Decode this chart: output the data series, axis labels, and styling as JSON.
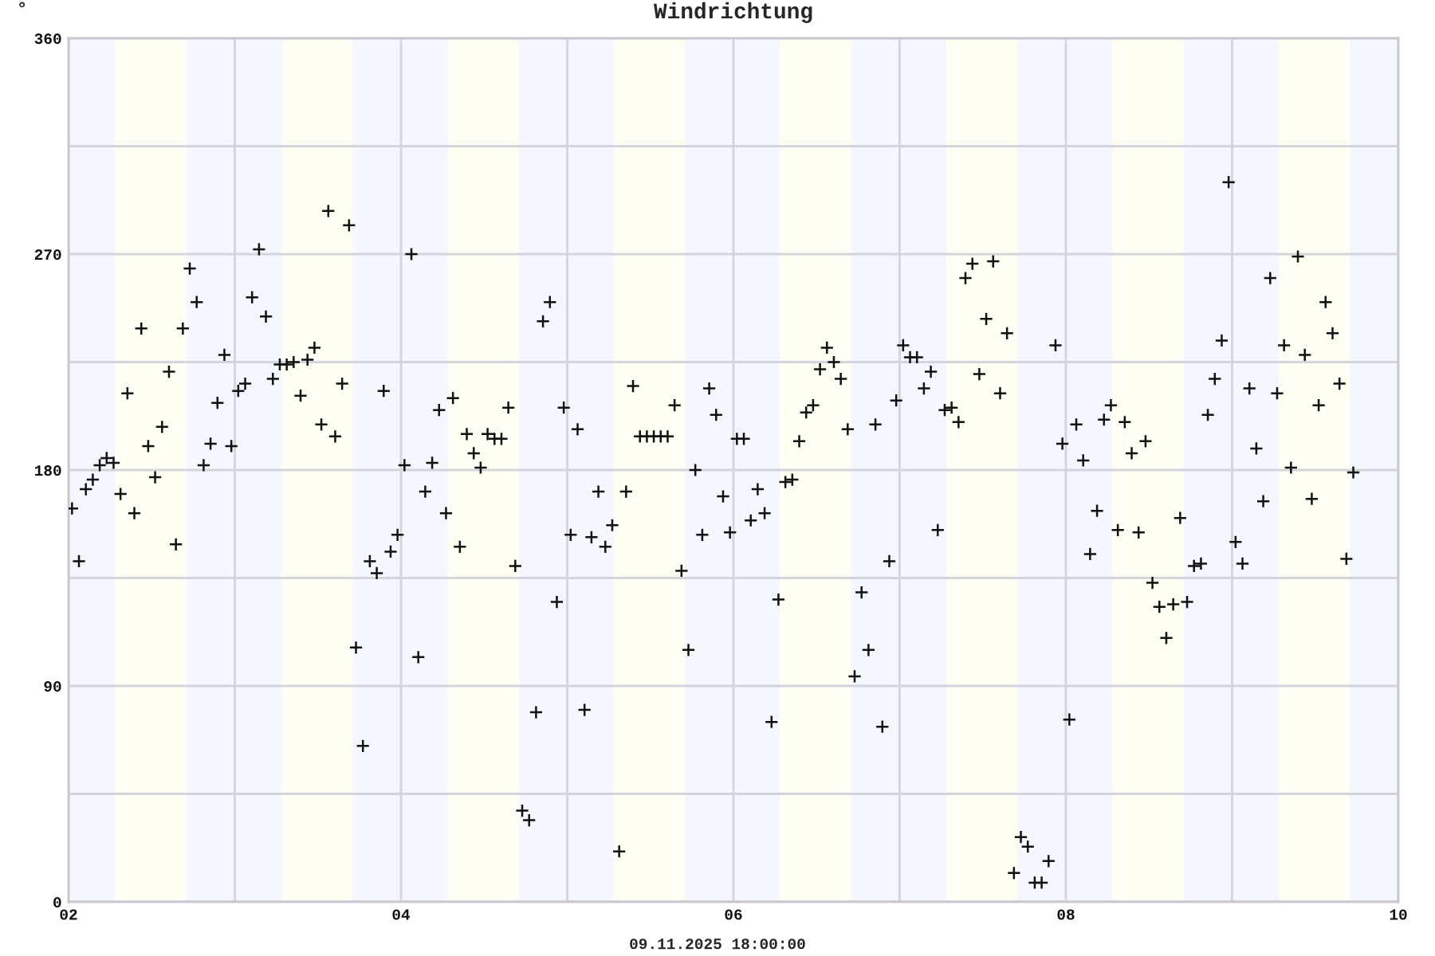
{
  "chart_data": {
    "type": "scatter",
    "title": "Windrichtung",
    "ylabel": "°",
    "annotations": [
      "09.11.2025 18:00:00"
    ],
    "x": [
      "2025-11-02T00:30",
      "2025-11-02T01:30",
      "2025-11-02T02:30",
      "2025-11-02T03:30",
      "2025-11-02T04:30",
      "2025-11-02T05:30",
      "2025-11-02T06:30",
      "2025-11-02T07:30",
      "2025-11-02T08:30",
      "2025-11-02T09:30",
      "2025-11-02T10:30",
      "2025-11-02T11:30",
      "2025-11-02T12:30",
      "2025-11-02T13:30",
      "2025-11-02T14:30",
      "2025-11-02T15:30",
      "2025-11-02T16:30",
      "2025-11-02T17:30",
      "2025-11-02T18:30",
      "2025-11-02T19:30",
      "2025-11-02T20:30",
      "2025-11-02T21:30",
      "2025-11-02T22:30",
      "2025-11-02T23:30",
      "2025-11-03T00:30",
      "2025-11-03T01:30",
      "2025-11-03T02:30",
      "2025-11-03T03:30",
      "2025-11-03T04:30",
      "2025-11-03T05:30",
      "2025-11-03T06:30",
      "2025-11-03T07:30",
      "2025-11-03T08:30",
      "2025-11-03T09:30",
      "2025-11-03T10:30",
      "2025-11-03T11:30",
      "2025-11-03T12:30",
      "2025-11-03T13:30",
      "2025-11-03T14:30",
      "2025-11-03T15:30",
      "2025-11-03T16:30",
      "2025-11-03T17:30",
      "2025-11-03T18:30",
      "2025-11-03T19:30",
      "2025-11-03T20:30",
      "2025-11-03T21:30",
      "2025-11-03T22:30",
      "2025-11-03T23:30",
      "2025-11-04T00:30",
      "2025-11-04T01:30",
      "2025-11-04T02:30",
      "2025-11-04T03:30",
      "2025-11-04T04:30",
      "2025-11-04T05:30",
      "2025-11-04T06:30",
      "2025-11-04T07:30",
      "2025-11-04T08:30",
      "2025-11-04T09:30",
      "2025-11-04T10:30",
      "2025-11-04T11:30",
      "2025-11-04T12:30",
      "2025-11-04T13:30",
      "2025-11-04T14:30",
      "2025-11-04T15:30",
      "2025-11-04T16:30",
      "2025-11-04T17:30",
      "2025-11-04T18:30",
      "2025-11-04T19:30",
      "2025-11-04T20:30",
      "2025-11-04T21:30",
      "2025-11-04T22:30",
      "2025-11-04T23:30",
      "2025-11-05T00:30",
      "2025-11-05T01:30",
      "2025-11-05T02:30",
      "2025-11-05T03:30",
      "2025-11-05T04:30",
      "2025-11-05T05:30",
      "2025-11-05T06:30",
      "2025-11-05T07:30",
      "2025-11-05T08:30",
      "2025-11-05T09:30",
      "2025-11-05T10:30",
      "2025-11-05T11:30",
      "2025-11-05T12:30",
      "2025-11-05T13:30",
      "2025-11-05T14:30",
      "2025-11-05T15:30",
      "2025-11-05T16:30",
      "2025-11-05T17:30",
      "2025-11-05T18:30",
      "2025-11-05T19:30",
      "2025-11-05T20:30",
      "2025-11-05T21:30",
      "2025-11-05T22:30",
      "2025-11-05T23:30",
      "2025-11-06T00:30",
      "2025-11-06T01:30",
      "2025-11-06T02:30",
      "2025-11-06T03:30",
      "2025-11-06T04:30",
      "2025-11-06T05:30",
      "2025-11-06T06:30",
      "2025-11-06T07:30",
      "2025-11-06T08:30",
      "2025-11-06T09:30",
      "2025-11-06T10:30",
      "2025-11-06T11:30",
      "2025-11-06T12:30",
      "2025-11-06T13:30",
      "2025-11-06T14:30",
      "2025-11-06T15:30",
      "2025-11-06T16:30",
      "2025-11-06T17:30",
      "2025-11-06T18:30",
      "2025-11-06T19:30",
      "2025-11-06T20:30",
      "2025-11-06T21:30",
      "2025-11-06T22:30",
      "2025-11-06T23:30",
      "2025-11-07T00:30",
      "2025-11-07T01:30",
      "2025-11-07T02:30",
      "2025-11-07T03:30",
      "2025-11-07T04:30",
      "2025-11-07T05:30",
      "2025-11-07T06:30",
      "2025-11-07T07:30",
      "2025-11-07T08:30",
      "2025-11-07T09:30",
      "2025-11-07T10:30",
      "2025-11-07T11:30",
      "2025-11-07T12:30",
      "2025-11-07T13:30",
      "2025-11-07T14:30",
      "2025-11-07T15:30",
      "2025-11-07T16:30",
      "2025-11-07T17:30",
      "2025-11-07T18:30",
      "2025-11-07T19:30",
      "2025-11-07T20:30",
      "2025-11-07T21:30",
      "2025-11-07T22:30",
      "2025-11-07T23:30",
      "2025-11-08T00:30",
      "2025-11-08T01:30",
      "2025-11-08T02:30",
      "2025-11-08T03:30",
      "2025-11-08T04:30",
      "2025-11-08T05:30",
      "2025-11-08T06:30",
      "2025-11-08T07:30",
      "2025-11-08T08:30",
      "2025-11-08T09:30",
      "2025-11-08T10:30",
      "2025-11-08T11:30",
      "2025-11-08T12:30",
      "2025-11-08T13:30",
      "2025-11-08T14:30",
      "2025-11-08T15:30",
      "2025-11-08T16:30",
      "2025-11-08T17:30",
      "2025-11-08T18:30",
      "2025-11-08T19:30",
      "2025-11-08T20:30",
      "2025-11-08T21:30",
      "2025-11-08T22:30",
      "2025-11-08T23:30",
      "2025-11-09T00:30",
      "2025-11-09T01:30",
      "2025-11-09T02:30",
      "2025-11-09T03:30",
      "2025-11-09T04:30",
      "2025-11-09T05:30",
      "2025-11-09T06:30",
      "2025-11-09T07:30",
      "2025-11-09T08:30",
      "2025-11-09T09:30",
      "2025-11-09T10:30",
      "2025-11-09T11:30",
      "2025-11-09T12:30",
      "2025-11-09T13:30",
      "2025-11-09T14:30",
      "2025-11-09T15:30",
      "2025-11-09T16:30",
      "2025-11-09T17:30"
    ],
    "values": [
      164,
      142,
      172,
      176,
      182,
      185,
      183,
      170,
      212,
      162,
      239,
      190,
      177,
      198,
      221,
      149,
      239,
      264,
      250,
      182,
      191,
      208,
      228,
      190,
      213,
      216,
      252,
      272,
      244,
      218,
      224,
      224,
      225,
      211,
      226,
      231,
      199,
      288,
      194,
      216,
      282,
      106,
      65,
      142,
      137,
      213,
      146,
      153,
      182,
      270,
      102,
      171,
      183,
      205,
      162,
      210,
      148,
      195,
      187,
      181,
      195,
      193,
      193,
      206,
      140,
      38,
      34,
      79,
      242,
      250,
      125,
      206,
      153,
      197,
      80,
      152,
      171,
      148,
      157,
      21,
      171,
      215,
      194,
      194,
      194,
      194,
      194,
      207,
      138,
      105,
      180,
      153,
      214,
      203,
      169,
      154,
      193,
      193,
      159,
      172,
      162,
      75,
      126,
      175,
      176,
      192,
      204,
      207,
      222,
      231,
      225,
      218,
      197,
      94,
      129,
      105,
      199,
      73,
      142,
      209,
      232,
      227,
      227,
      214,
      221,
      155,
      205,
      206,
      200,
      260,
      266,
      220,
      243,
      267,
      212,
      237,
      12,
      27,
      23,
      8,
      8,
      17,
      232,
      191,
      76,
      199,
      184,
      145,
      163,
      201,
      207,
      155,
      200,
      187,
      154,
      192,
      133,
      123,
      110,
      124,
      160,
      125,
      140,
      141,
      203,
      218,
      234,
      300,
      150,
      141,
      214,
      189,
      167,
      260,
      212,
      232,
      181,
      269,
      228,
      168,
      207,
      250,
      237,
      216,
      143,
      179
    ],
    "color": "#111111",
    "marker": "cross",
    "xlim": [
      "2025-11-02",
      "2025-11-10"
    ],
    "xticks": [
      {
        "value": "2025-11-02",
        "label": "02"
      },
      {
        "value": "2025-11-03",
        "label": null
      },
      {
        "value": "2025-11-04",
        "label": "04"
      },
      {
        "value": "2025-11-05",
        "label": null
      },
      {
        "value": "2025-11-06",
        "label": "06"
      },
      {
        "value": "2025-11-07",
        "label": null
      },
      {
        "value": "2025-11-08",
        "label": "08"
      },
      {
        "value": "2025-11-09",
        "label": null
      },
      {
        "value": "2025-11-10",
        "label": "10"
      }
    ],
    "ylim": [
      0,
      360
    ],
    "yticks": [
      0,
      {
        "value": 45,
        "label": null
      },
      90,
      {
        "value": 135,
        "label": null
      },
      180,
      {
        "value": 225,
        "label": null
      },
      270,
      {
        "value": 315,
        "label": null
      },
      360
    ],
    "grid": true,
    "bands": [
      {
        "axis": "x",
        "from": "2025-11-02T00:00",
        "to": "2025-11-02T06:45",
        "color": "#f5f7fe"
      },
      {
        "axis": "x",
        "from": "2025-11-02T06:45",
        "to": "2025-11-02T17:00",
        "color": "#fefff3"
      },
      {
        "axis": "x",
        "from": "2025-11-02T17:00",
        "to": "2025-11-03T06:45",
        "color": "#f5f7fe"
      },
      {
        "axis": "x",
        "from": "2025-11-03T06:45",
        "to": "2025-11-03T17:00",
        "color": "#fefff3"
      },
      {
        "axis": "x",
        "from": "2025-11-03T17:00",
        "to": "2025-11-04T06:45",
        "color": "#f5f7fe"
      },
      {
        "axis": "x",
        "from": "2025-11-04T06:45",
        "to": "2025-11-04T17:00",
        "color": "#fefff3"
      },
      {
        "axis": "x",
        "from": "2025-11-04T17:00",
        "to": "2025-11-05T06:45",
        "color": "#f5f7fe"
      },
      {
        "axis": "x",
        "from": "2025-11-05T06:45",
        "to": "2025-11-05T17:00",
        "color": "#fefff3"
      },
      {
        "axis": "x",
        "from": "2025-11-05T17:00",
        "to": "2025-11-06T06:45",
        "color": "#f5f7fe"
      },
      {
        "axis": "x",
        "from": "2025-11-06T06:45",
        "to": "2025-11-06T17:00",
        "color": "#fefff3"
      },
      {
        "axis": "x",
        "from": "2025-11-06T17:00",
        "to": "2025-11-07T06:45",
        "color": "#f5f7fe"
      },
      {
        "axis": "x",
        "from": "2025-11-07T06:45",
        "to": "2025-11-07T17:00",
        "color": "#fefff3"
      },
      {
        "axis": "x",
        "from": "2025-11-07T17:00",
        "to": "2025-11-08T06:45",
        "color": "#f5f7fe"
      },
      {
        "axis": "x",
        "from": "2025-11-08T06:45",
        "to": "2025-11-08T17:00",
        "color": "#fefff3"
      },
      {
        "axis": "x",
        "from": "2025-11-08T17:00",
        "to": "2025-11-09T06:45",
        "color": "#f5f7fe"
      },
      {
        "axis": "x",
        "from": "2025-11-09T06:45",
        "to": "2025-11-09T17:00",
        "color": "#fefff3"
      },
      {
        "axis": "x",
        "from": "2025-11-09T17:00",
        "to": "2025-11-10T00:00",
        "color": "#f5f7fe"
      }
    ]
  }
}
